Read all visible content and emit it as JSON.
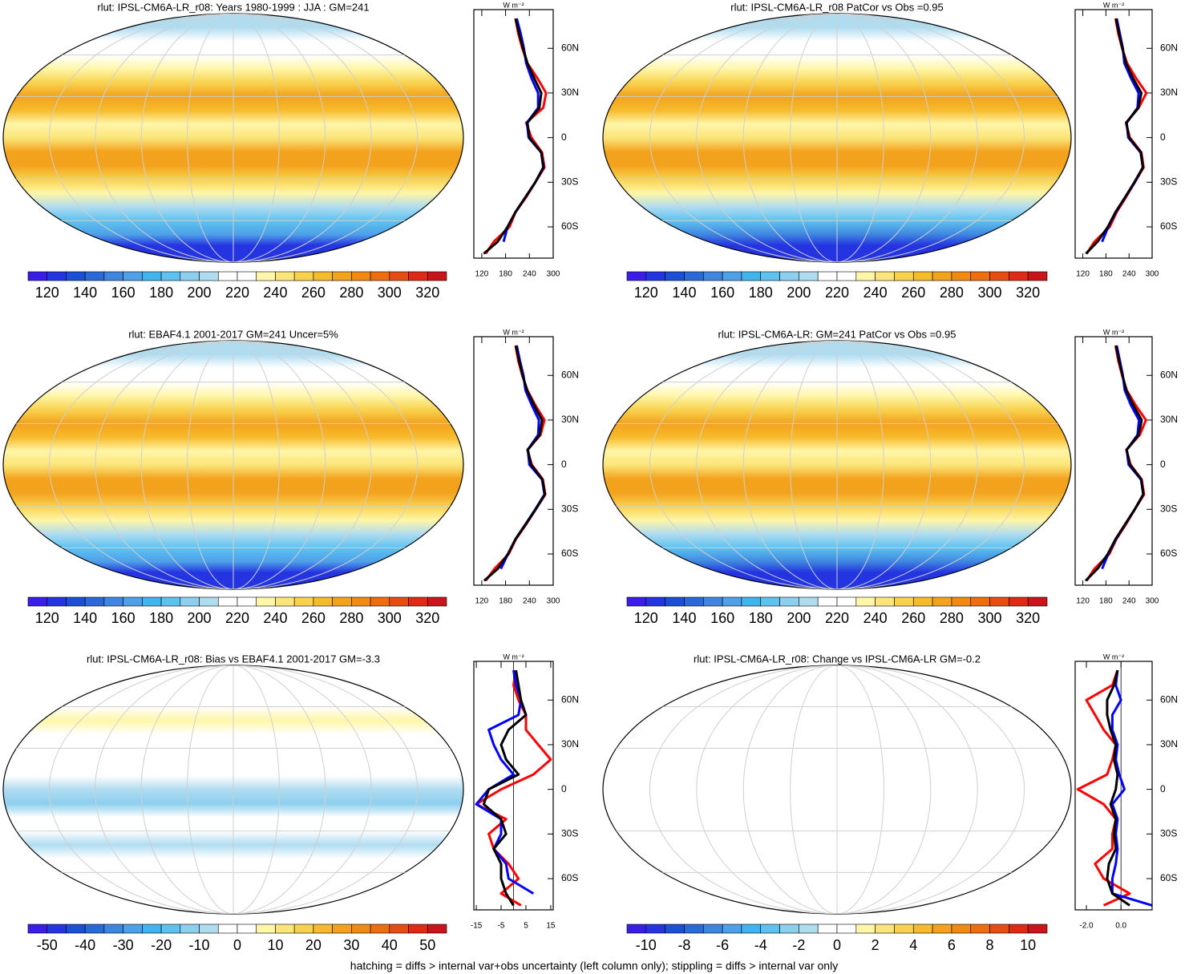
{
  "chart_data": [
    {
      "type": "line",
      "title": "rlut: IPSL-CM6A-LR_r08: Years 1980-1999 : JJA : GM=241",
      "unit": "W m⁻²",
      "clim": [
        110,
        330
      ],
      "colorbar_ticks": [
        120,
        140,
        160,
        180,
        200,
        220,
        240,
        260,
        280,
        300,
        320
      ],
      "xlim": [
        100,
        300
      ],
      "xticks": [
        120,
        180,
        240,
        300
      ],
      "ylim": [
        -81,
        86
      ],
      "yticks": [
        {
          "value": 60,
          "label": "60N"
        },
        {
          "value": 30,
          "label": "30N"
        },
        0,
        {
          "value": -30,
          "label": "30S"
        },
        {
          "value": -60,
          "label": "60S"
        }
      ],
      "lats": [
        -78,
        -70,
        -60,
        -50,
        -40,
        -30,
        -20,
        -10,
        0,
        10,
        20,
        30,
        40,
        50,
        60,
        70,
        80
      ],
      "series": [
        {
          "color": "#ff0000",
          "values": [
            130,
            150,
            190,
            205,
            232,
            255,
            278,
            272,
            245,
            232,
            275,
            282,
            260,
            235,
            222,
            212,
            205
          ]
        },
        {
          "color": "#0000ff",
          "values": [
            null,
            175,
            185,
            205,
            230,
            255,
            276,
            270,
            238,
            234,
            262,
            262,
            245,
            232,
            226,
            218,
            208
          ]
        },
        {
          "color": "#000000",
          "values": [
            125,
            160,
            185,
            205,
            230,
            255,
            275,
            270,
            240,
            235,
            265,
            270,
            252,
            235,
            224,
            214,
            205
          ]
        }
      ]
    },
    {
      "type": "line",
      "title": "rlut: IPSL-CM6A-LR_r08 PatCor vs Obs =0.95",
      "unit": "W m⁻²",
      "clim": [
        110,
        330
      ],
      "colorbar_ticks": [
        120,
        140,
        160,
        180,
        200,
        220,
        240,
        260,
        280,
        300,
        320
      ],
      "xlim": [
        100,
        300
      ],
      "xticks": [
        120,
        180,
        240,
        300
      ],
      "ylim": [
        -81,
        86
      ],
      "yticks": [
        {
          "value": 60,
          "label": "60N"
        },
        {
          "value": 30,
          "label": "30N"
        },
        0,
        {
          "value": -30,
          "label": "30S"
        },
        {
          "value": -60,
          "label": "60S"
        }
      ],
      "lats": [
        -78,
        -70,
        -60,
        -50,
        -40,
        -30,
        -20,
        -10,
        0,
        10,
        20,
        30,
        40,
        50,
        60,
        70,
        80
      ],
      "series": [
        {
          "color": "#ff0000",
          "values": [
            130,
            150,
            190,
            208,
            232,
            255,
            278,
            272,
            242,
            232,
            265,
            285,
            258,
            235,
            222,
            212,
            205
          ]
        },
        {
          "color": "#0000ff",
          "values": [
            null,
            170,
            186,
            206,
            230,
            255,
            276,
            270,
            238,
            234,
            262,
            265,
            245,
            228,
            224,
            216,
            208
          ]
        },
        {
          "color": "#000000",
          "values": [
            128,
            158,
            185,
            205,
            230,
            254,
            276,
            271,
            240,
            233,
            264,
            272,
            250,
            232,
            223,
            214,
            206
          ]
        }
      ]
    },
    {
      "type": "line",
      "title": "rlut: EBAF4.1 2001-2017 GM=241 Uncer=5%",
      "unit": "W m⁻²",
      "clim": [
        110,
        330
      ],
      "colorbar_ticks": [
        120,
        140,
        160,
        180,
        200,
        220,
        240,
        260,
        280,
        300,
        320
      ],
      "xlim": [
        100,
        300
      ],
      "xticks": [
        120,
        180,
        240,
        300
      ],
      "ylim": [
        -81,
        86
      ],
      "yticks": [
        {
          "value": 60,
          "label": "60N"
        },
        {
          "value": 30,
          "label": "30N"
        },
        0,
        {
          "value": -30,
          "label": "30S"
        },
        {
          "value": -60,
          "label": "60S"
        }
      ],
      "lats": [
        -78,
        -70,
        -60,
        -50,
        -40,
        -30,
        -20,
        -10,
        0,
        10,
        20,
        30,
        40,
        50,
        60,
        70,
        80
      ],
      "series": [
        {
          "color": "#ff0000",
          "values": [
            130,
            152,
            188,
            206,
            232,
            256,
            280,
            274,
            246,
            235,
            268,
            278,
            255,
            235,
            222,
            212,
            205
          ]
        },
        {
          "color": "#0000ff",
          "values": [
            null,
            168,
            186,
            205,
            230,
            255,
            278,
            272,
            240,
            236,
            262,
            264,
            246,
            230,
            225,
            216,
            208
          ]
        },
        {
          "color": "#000000",
          "values": [
            126,
            160,
            186,
            205,
            231,
            256,
            279,
            273,
            244,
            236,
            266,
            272,
            252,
            234,
            223,
            214,
            206
          ]
        }
      ]
    },
    {
      "type": "line",
      "title": "rlut: IPSL-CM6A-LR: GM=241 PatCor vs Obs =0.95",
      "unit": "W m⁻²",
      "clim": [
        110,
        330
      ],
      "colorbar_ticks": [
        120,
        140,
        160,
        180,
        200,
        220,
        240,
        260,
        280,
        300,
        320
      ],
      "xlim": [
        100,
        300
      ],
      "xticks": [
        120,
        180,
        240,
        300
      ],
      "ylim": [
        -81,
        86
      ],
      "yticks": [
        {
          "value": 60,
          "label": "60N"
        },
        {
          "value": 30,
          "label": "30N"
        },
        0,
        {
          "value": -30,
          "label": "30S"
        },
        {
          "value": -60,
          "label": "60S"
        }
      ],
      "lats": [
        -78,
        -70,
        -60,
        -50,
        -40,
        -30,
        -20,
        -10,
        0,
        10,
        20,
        30,
        40,
        50,
        60,
        70,
        80
      ],
      "series": [
        {
          "color": "#ff0000",
          "values": [
            130,
            150,
            189,
            207,
            232,
            255,
            279,
            273,
            244,
            233,
            268,
            284,
            257,
            234,
            222,
            212,
            205
          ]
        },
        {
          "color": "#0000ff",
          "values": [
            null,
            170,
            186,
            206,
            230,
            255,
            277,
            271,
            239,
            234,
            262,
            266,
            245,
            229,
            224,
            216,
            208
          ]
        },
        {
          "color": "#000000",
          "values": [
            127,
            158,
            185,
            205,
            230,
            255,
            277,
            272,
            242,
            234,
            265,
            273,
            251,
            233,
            223,
            214,
            206
          ]
        }
      ]
    },
    {
      "type": "line",
      "title": "rlut: IPSL-CM6A-LR_r08: Bias vs EBAF4.1 2001-2017 GM=-3.3",
      "unit": "W m⁻²",
      "clim": [
        -55,
        55
      ],
      "colorbar_ticks": [
        -50,
        -40,
        -30,
        -20,
        -10,
        0,
        10,
        20,
        30,
        40,
        50
      ],
      "xlim": [
        -16,
        16
      ],
      "xticks": [
        -15,
        -5,
        5,
        15
      ],
      "ylim": [
        -81,
        86
      ],
      "yticks": [
        {
          "value": 60,
          "label": "60N"
        },
        {
          "value": 30,
          "label": "30N"
        },
        0,
        {
          "value": -30,
          "label": "30S"
        },
        {
          "value": -60,
          "label": "60S"
        }
      ],
      "lats": [
        -78,
        -70,
        -60,
        -50,
        -40,
        -30,
        -20,
        -10,
        0,
        10,
        20,
        30,
        40,
        50,
        60,
        70,
        80
      ],
      "series": [
        {
          "color": "#ff0000",
          "values": [
            3,
            -5,
            2,
            -2,
            -8,
            -10,
            -3,
            -15,
            -5,
            8,
            15,
            10,
            5,
            5,
            2,
            0,
            1
          ]
        },
        {
          "color": "#0000ff",
          "values": [
            null,
            8,
            -2,
            -3,
            -8,
            -5,
            -5,
            -15,
            -10,
            0,
            -5,
            -8,
            -10,
            2,
            3,
            1,
            0
          ]
        },
        {
          "color": "#000000",
          "values": [
            0,
            -3,
            -5,
            -5,
            -8,
            -3,
            -5,
            -12,
            -10,
            2,
            -3,
            -5,
            -2,
            5,
            3,
            2,
            1
          ]
        }
      ]
    },
    {
      "type": "line",
      "title": "rlut: IPSL-CM6A-LR_r08: Change vs IPSL-CM6A-LR GM=-0.2",
      "unit": "W m⁻²",
      "clim": [
        -11,
        11
      ],
      "colorbar_ticks": [
        -10,
        -8,
        -6,
        -4,
        -2,
        0,
        2,
        4,
        6,
        8,
        10
      ],
      "xlim": [
        -2.65,
        1.8
      ],
      "xticks": [
        {
          "value": -2,
          "label": "-2.0"
        },
        {
          "value": 0,
          "label": "0.0"
        }
      ],
      "ylim": [
        -81,
        86
      ],
      "yticks": [
        {
          "value": 60,
          "label": "60N"
        },
        {
          "value": 30,
          "label": "30N"
        },
        0,
        {
          "value": -30,
          "label": "30S"
        },
        {
          "value": -60,
          "label": "60S"
        }
      ],
      "lats": [
        -78,
        -70,
        -60,
        -50,
        -40,
        -30,
        -20,
        -10,
        0,
        10,
        20,
        30,
        40,
        50,
        60,
        70,
        80
      ],
      "series": [
        {
          "color": "#ff0000",
          "values": [
            -1.0,
            0.5,
            -1.0,
            -1.5,
            -0.5,
            -0.5,
            -0.3,
            -1.0,
            -2.5,
            -0.8,
            -0.5,
            -0.3,
            -1.0,
            -1.5,
            -2.0,
            -0.5,
            -0.2
          ]
        },
        {
          "color": "#0000ff",
          "values": [
            1.8,
            -0.5,
            -0.5,
            -0.3,
            -0.2,
            -0.3,
            -0.2,
            -0.5,
            0.2,
            -0.1,
            -0.3,
            -0.2,
            -0.5,
            -0.5,
            0.0,
            -0.3,
            -0.2
          ]
        },
        {
          "color": "#000000",
          "values": [
            0.5,
            -0.5,
            -0.8,
            -0.7,
            -0.3,
            -0.4,
            -0.3,
            -0.6,
            -0.3,
            -0.2,
            -0.4,
            -0.3,
            -0.6,
            -0.8,
            -0.8,
            -0.4,
            -0.2
          ]
        }
      ]
    }
  ],
  "colorbar_colors": [
    "#3a1ee8",
    "#2434e0",
    "#1b4fd6",
    "#2a6ad8",
    "#3f86e0",
    "#4ea0e8",
    "#3fb4ee",
    "#5ec2f0",
    "#8ccfee",
    "#b0dcf0",
    "#ffffff",
    "#ffffff",
    "#fff6a8",
    "#fbe57a",
    "#f8d24f",
    "#f6bb2c",
    "#f3a21d",
    "#f08a12",
    "#ed6d0f",
    "#e64d12",
    "#df2a16",
    "#c8141a"
  ],
  "footer": "hatching = diffs > internal var+obs uncertainty (left column only); stippling = diffs > internal var only"
}
